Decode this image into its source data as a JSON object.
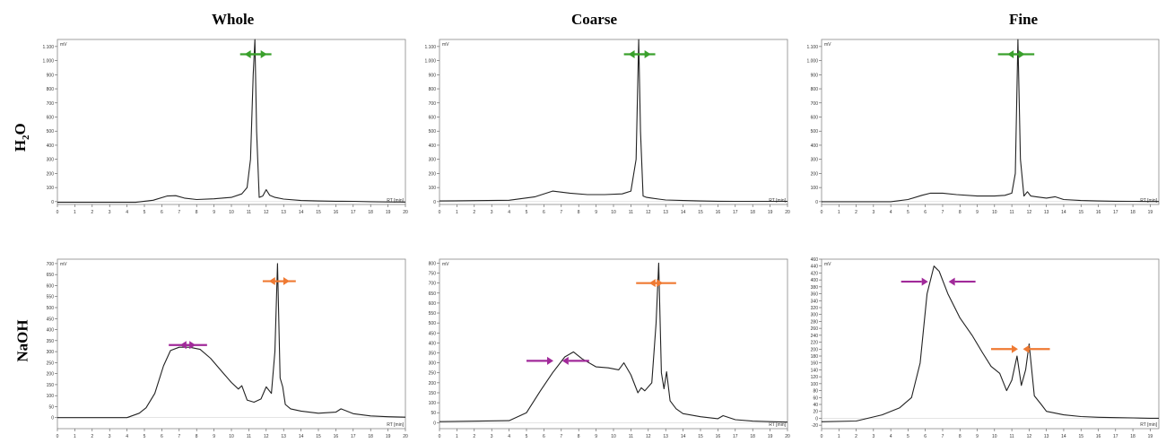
{
  "columns": [
    "Whole",
    "Coarse",
    "Fine"
  ],
  "rows": {
    "h2o_sub": "2",
    "h2o_pre": "H",
    "h2o_post": "O",
    "naoh": "NaOH"
  },
  "colors": {
    "green_arrow": "#3aa02c",
    "purple_arrow": "#a12a9a",
    "orange_arrow": "#ef7a33",
    "trace": "#222222",
    "frame": "#888888"
  },
  "chart_data": [
    {
      "id": "whole-h2o",
      "type": "line",
      "xlabel": "RT [min]",
      "ylabel": "mV",
      "xlim": [
        0,
        20
      ],
      "ylim": [
        -20,
        1150
      ],
      "yticks": [
        0,
        100,
        200,
        300,
        400,
        500,
        600,
        700,
        800,
        900,
        1000,
        1100
      ],
      "ytick_labels": [
        "0",
        "100",
        "200",
        "300",
        "400",
        "500",
        "600",
        "700",
        "800",
        "900",
        "1.000",
        "1.100"
      ],
      "xticks": [
        0,
        1,
        2,
        3,
        4,
        5,
        6,
        7,
        8,
        9,
        10,
        11,
        12,
        13,
        14,
        15,
        16,
        17,
        18,
        19,
        20
      ],
      "x": [
        0,
        4.5,
        5.5,
        6.3,
        6.8,
        7.3,
        8,
        9,
        10,
        10.6,
        10.9,
        11.1,
        11.25,
        11.35,
        11.45,
        11.6,
        11.8,
        12.0,
        12.2,
        12.5,
        13,
        14,
        15,
        16,
        17,
        18,
        19,
        20
      ],
      "y": [
        -5,
        -5,
        10,
        40,
        42,
        25,
        15,
        20,
        30,
        55,
        100,
        300,
        900,
        1150,
        500,
        30,
        40,
        85,
        45,
        30,
        18,
        8,
        5,
        3,
        2,
        0,
        -2,
        -3
      ],
      "arrows": [
        {
          "color": "green",
          "dir": "right",
          "x": 10.5,
          "y": 1045
        },
        {
          "color": "green",
          "dir": "left",
          "x": 12.3,
          "y": 1045
        }
      ]
    },
    {
      "id": "coarse-h2o",
      "type": "line",
      "xlabel": "RT [min]",
      "ylabel": "mV",
      "xlim": [
        0,
        20
      ],
      "ylim": [
        -20,
        1150
      ],
      "yticks": [
        0,
        100,
        200,
        300,
        400,
        500,
        600,
        700,
        800,
        900,
        1000,
        1100
      ],
      "ytick_labels": [
        "0",
        "100",
        "200",
        "300",
        "400",
        "500",
        "600",
        "700",
        "800",
        "900",
        "1.000",
        "1.100"
      ],
      "xticks": [
        0,
        1,
        2,
        3,
        4,
        5,
        6,
        7,
        8,
        9,
        10,
        11,
        12,
        13,
        14,
        15,
        16,
        17,
        18,
        19,
        20
      ],
      "x": [
        0,
        4,
        5.5,
        6.5,
        7.5,
        8.5,
        9.5,
        10.5,
        11,
        11.3,
        11.45,
        11.55,
        11.7,
        11.9,
        12.2,
        12.6,
        13,
        14,
        15,
        16,
        17,
        18,
        19,
        20
      ],
      "y": [
        5,
        10,
        35,
        75,
        60,
        50,
        50,
        55,
        75,
        300,
        1150,
        500,
        40,
        30,
        25,
        18,
        12,
        8,
        5,
        3,
        2,
        2,
        2,
        2
      ],
      "arrows": [
        {
          "color": "green",
          "dir": "right",
          "x": 10.6,
          "y": 1045
        },
        {
          "color": "green",
          "dir": "left",
          "x": 12.4,
          "y": 1045
        }
      ]
    },
    {
      "id": "fine-h2o",
      "type": "line",
      "xlabel": "RT [min]",
      "ylabel": "mV",
      "xlim": [
        0,
        19.5
      ],
      "ylim": [
        -20,
        1150
      ],
      "yticks": [
        0,
        100,
        200,
        300,
        400,
        500,
        600,
        700,
        800,
        900,
        1000,
        1100
      ],
      "ytick_labels": [
        "0",
        "100",
        "200",
        "300",
        "400",
        "500",
        "600",
        "700",
        "800",
        "900",
        "1.000",
        "1.100"
      ],
      "xticks": [
        0,
        1,
        2,
        3,
        4,
        5,
        6,
        7,
        8,
        9,
        10,
        11,
        12,
        13,
        14,
        15,
        16,
        17,
        18,
        19
      ],
      "x": [
        0,
        4,
        5,
        5.8,
        6.3,
        7,
        7.8,
        9,
        10,
        10.6,
        11,
        11.2,
        11.35,
        11.5,
        11.7,
        11.9,
        12.1,
        12.4,
        13,
        13.5,
        14,
        15,
        16,
        17,
        18,
        19,
        19.5
      ],
      "y": [
        0,
        0,
        15,
        45,
        60,
        60,
        50,
        40,
        40,
        45,
        60,
        200,
        1150,
        300,
        40,
        70,
        40,
        35,
        25,
        35,
        15,
        8,
        5,
        3,
        2,
        1,
        1
      ],
      "arrows": [
        {
          "color": "green",
          "dir": "right",
          "x": 10.2,
          "y": 1045
        },
        {
          "color": "green",
          "dir": "left",
          "x": 12.3,
          "y": 1045
        }
      ]
    },
    {
      "id": "whole-naoh",
      "type": "line",
      "xlabel": "RT [min]",
      "ylabel": "mV",
      "xlim": [
        0,
        20
      ],
      "ylim": [
        -50,
        720
      ],
      "yticks": [
        0,
        50,
        100,
        150,
        200,
        250,
        300,
        350,
        400,
        450,
        500,
        550,
        600,
        650,
        700
      ],
      "ytick_labels": [
        "0",
        "50",
        "100",
        "150",
        "200",
        "250",
        "300",
        "350",
        "400",
        "450",
        "500",
        "550",
        "600",
        "650",
        "700"
      ],
      "xticks": [
        0,
        1,
        2,
        3,
        4,
        5,
        6,
        7,
        8,
        9,
        10,
        11,
        12,
        13,
        14,
        15,
        16,
        17,
        18,
        19,
        20
      ],
      "x": [
        0,
        4,
        4.7,
        5.1,
        5.6,
        6.1,
        6.5,
        7,
        7.6,
        8.2,
        8.8,
        9.5,
        10,
        10.4,
        10.6,
        10.9,
        11.3,
        11.7,
        12,
        12.3,
        12.5,
        12.65,
        12.8,
        12.95,
        13.1,
        13.4,
        14,
        15,
        16,
        16.3,
        17,
        18,
        19,
        20
      ],
      "y": [
        0,
        0,
        20,
        45,
        110,
        235,
        305,
        320,
        320,
        310,
        270,
        205,
        160,
        130,
        145,
        80,
        70,
        85,
        140,
        110,
        300,
        700,
        180,
        140,
        60,
        40,
        30,
        20,
        25,
        40,
        18,
        8,
        4,
        2
      ],
      "arrows": [
        {
          "color": "orange",
          "dir": "right",
          "x": 11.8,
          "y": 620
        },
        {
          "color": "orange",
          "dir": "left",
          "x": 13.7,
          "y": 620
        },
        {
          "color": "purple",
          "dir": "right",
          "x": 6.4,
          "y": 330
        },
        {
          "color": "purple",
          "dir": "left",
          "x": 8.6,
          "y": 330
        }
      ]
    },
    {
      "id": "coarse-naoh",
      "type": "line",
      "xlabel": "RT [min]",
      "ylabel": "mV",
      "xlim": [
        0,
        20
      ],
      "ylim": [
        -30,
        820
      ],
      "yticks": [
        0,
        50,
        100,
        150,
        200,
        250,
        300,
        350,
        400,
        450,
        500,
        550,
        600,
        650,
        700,
        750,
        800
      ],
      "ytick_labels": [
        "0",
        "50",
        "100",
        "150",
        "200",
        "250",
        "300",
        "350",
        "400",
        "450",
        "500",
        "550",
        "600",
        "650",
        "700",
        "750",
        "800"
      ],
      "xticks": [
        0,
        1,
        2,
        3,
        4,
        5,
        6,
        7,
        8,
        9,
        10,
        11,
        12,
        13,
        14,
        15,
        16,
        17,
        18,
        19,
        20
      ],
      "x": [
        0,
        4,
        5,
        5.8,
        6.5,
        7.2,
        7.7,
        8.2,
        9,
        9.7,
        10.3,
        10.6,
        11,
        11.4,
        11.6,
        11.8,
        12.2,
        12.45,
        12.6,
        12.75,
        12.9,
        13.05,
        13.25,
        13.6,
        14,
        15,
        16,
        16.3,
        17,
        18,
        19,
        20
      ],
      "y": [
        5,
        10,
        50,
        160,
        250,
        330,
        355,
        320,
        280,
        275,
        265,
        300,
        240,
        150,
        175,
        160,
        200,
        500,
        800,
        250,
        170,
        255,
        110,
        70,
        45,
        30,
        20,
        35,
        15,
        8,
        5,
        3
      ],
      "arrows": [
        {
          "color": "orange",
          "dir": "right",
          "x": 11.3,
          "y": 700
        },
        {
          "color": "orange",
          "dir": "left",
          "x": 13.6,
          "y": 700
        },
        {
          "color": "purple",
          "dir": "right",
          "x": 5,
          "y": 310
        },
        {
          "color": "purple",
          "dir": "left",
          "x": 8.6,
          "y": 310
        }
      ]
    },
    {
      "id": "fine-naoh",
      "type": "line",
      "xlabel": "RT [min]",
      "ylabel": "mV",
      "xlim": [
        0,
        19.5
      ],
      "ylim": [
        -30,
        460
      ],
      "yticks": [
        -20,
        0,
        20,
        40,
        60,
        80,
        100,
        120,
        140,
        160,
        180,
        200,
        220,
        240,
        260,
        280,
        300,
        320,
        340,
        360,
        380,
        400,
        420,
        440,
        460
      ],
      "ytick_labels": [
        "-20",
        "0",
        "20",
        "40",
        "60",
        "80",
        "100",
        "120",
        "140",
        "160",
        "180",
        "200",
        "220",
        "240",
        "260",
        "280",
        "300",
        "320",
        "340",
        "360",
        "380",
        "400",
        "420",
        "440",
        "460"
      ],
      "xticks": [
        0,
        1,
        2,
        3,
        4,
        5,
        6,
        7,
        8,
        9,
        10,
        11,
        12,
        13,
        14,
        15,
        16,
        17,
        18,
        19
      ],
      "x": [
        0,
        2,
        3.5,
        4.5,
        5.2,
        5.7,
        6.1,
        6.5,
        6.8,
        7.3,
        8,
        8.7,
        9.3,
        9.8,
        10.3,
        10.7,
        11.0,
        11.3,
        11.55,
        11.8,
        12.0,
        12.3,
        12.7,
        13,
        14,
        15,
        16,
        17,
        18,
        19,
        19.5
      ],
      "y": [
        -10,
        -8,
        10,
        30,
        60,
        160,
        360,
        440,
        425,
        360,
        290,
        240,
        190,
        150,
        130,
        80,
        110,
        180,
        95,
        140,
        215,
        65,
        40,
        20,
        10,
        5,
        3,
        2,
        1,
        0,
        0
      ],
      "arrows": [
        {
          "color": "purple",
          "dir": "right",
          "x": 4.6,
          "y": 395
        },
        {
          "color": "purple",
          "dir": "left",
          "x": 8.9,
          "y": 395
        },
        {
          "color": "orange",
          "dir": "right",
          "x": 9.8,
          "y": 200
        },
        {
          "color": "orange",
          "dir": "left",
          "x": 13.2,
          "y": 200
        }
      ]
    }
  ]
}
